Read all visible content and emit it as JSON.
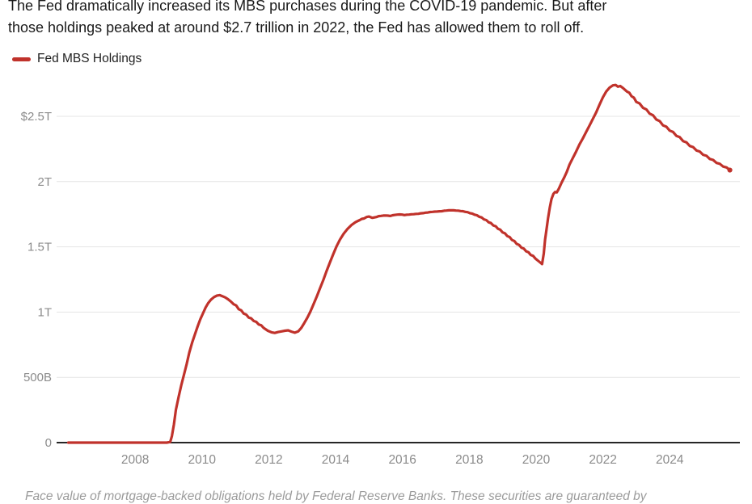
{
  "header": {
    "line1": "The Fed dramatically increased its MBS purchases during the COVID-19 pandemic. But after",
    "line2": "those holdings peaked at around $2.7 trillion in 2022, the Fed has allowed them to roll off."
  },
  "legend": {
    "items": [
      {
        "label": "Fed MBS Holdings",
        "color": "#c0322b"
      }
    ]
  },
  "footer": {
    "note": "Face value of mortgage-backed obligations held by Federal Reserve Banks. These securities are guaranteed by"
  },
  "colors": {
    "line": "#c0322b",
    "grid": "#e4e4e4",
    "axis": "#262626",
    "tick_label": "#8b8b8b",
    "title_text": "#1a1a1a",
    "note_text": "#9b9b9b",
    "background": "#ffffff"
  },
  "chart_data": {
    "type": "line",
    "title": "The Fed dramatically increased its MBS purchases during the COVID-19 pandemic. But after those holdings peaked at around $2.7 trillion in 2022, the Fed has allowed them to roll off.",
    "xlabel": "",
    "ylabel": "",
    "units": "USD, B = billions, T = trillions",
    "grid": "horizontal",
    "legend_position": "top-left",
    "x_domain": [
      2005.77,
      2026.1
    ],
    "y_domain": [
      0,
      2.803
    ],
    "x_ticks": [
      {
        "value": 2008,
        "label": "2008"
      },
      {
        "value": 2010,
        "label": "2010"
      },
      {
        "value": 2012,
        "label": "2012"
      },
      {
        "value": 2014,
        "label": "2014"
      },
      {
        "value": 2016,
        "label": "2016"
      },
      {
        "value": 2018,
        "label": "2018"
      },
      {
        "value": 2020,
        "label": "2020"
      },
      {
        "value": 2022,
        "label": "2022"
      },
      {
        "value": 2024,
        "label": "2024"
      }
    ],
    "y_ticks": [
      {
        "value": 0,
        "label": "0"
      },
      {
        "value": 0.5,
        "label": "500B"
      },
      {
        "value": 1,
        "label": "1T"
      },
      {
        "value": 1.5,
        "label": "1.5T"
      },
      {
        "value": 2,
        "label": "2T"
      },
      {
        "value": 2.5,
        "label": "$2.5T"
      }
    ],
    "series": [
      {
        "name": "Fed MBS Holdings",
        "color": "#c0322b",
        "points": [
          [
            2006.0,
            0
          ],
          [
            2006.5,
            0
          ],
          [
            2007.0,
            0
          ],
          [
            2007.5,
            0
          ],
          [
            2008.0,
            0
          ],
          [
            2008.5,
            0
          ],
          [
            2008.95,
            0
          ],
          [
            2009.05,
            0.005
          ],
          [
            2009.1,
            0.05
          ],
          [
            2009.16,
            0.14
          ],
          [
            2009.22,
            0.25
          ],
          [
            2009.3,
            0.35
          ],
          [
            2009.38,
            0.44
          ],
          [
            2009.46,
            0.52
          ],
          [
            2009.54,
            0.6
          ],
          [
            2009.62,
            0.69
          ],
          [
            2009.71,
            0.77
          ],
          [
            2009.79,
            0.83
          ],
          [
            2009.87,
            0.89
          ],
          [
            2009.95,
            0.945
          ],
          [
            2010.03,
            0.99
          ],
          [
            2010.11,
            1.035
          ],
          [
            2010.19,
            1.07
          ],
          [
            2010.27,
            1.095
          ],
          [
            2010.36,
            1.115
          ],
          [
            2010.45,
            1.127
          ],
          [
            2010.53,
            1.13
          ],
          [
            2010.61,
            1.122
          ],
          [
            2010.7,
            1.112
          ],
          [
            2010.78,
            1.098
          ],
          [
            2010.87,
            1.08
          ],
          [
            2010.95,
            1.06
          ],
          [
            2011.1,
            1.022
          ],
          [
            2011.25,
            0.988
          ],
          [
            2011.4,
            0.958
          ],
          [
            2011.55,
            0.932
          ],
          [
            2011.7,
            0.905
          ],
          [
            2011.85,
            0.878
          ],
          [
            2011.97,
            0.857
          ],
          [
            2012.08,
            0.845
          ],
          [
            2012.18,
            0.84
          ],
          [
            2012.28,
            0.847
          ],
          [
            2012.38,
            0.852
          ],
          [
            2012.48,
            0.857
          ],
          [
            2012.58,
            0.86
          ],
          [
            2012.68,
            0.85
          ],
          [
            2012.78,
            0.842
          ],
          [
            2012.88,
            0.852
          ],
          [
            2012.97,
            0.878
          ],
          [
            2013.06,
            0.915
          ],
          [
            2013.15,
            0.955
          ],
          [
            2013.24,
            1.0
          ],
          [
            2013.33,
            1.055
          ],
          [
            2013.43,
            1.115
          ],
          [
            2013.53,
            1.18
          ],
          [
            2013.63,
            1.245
          ],
          [
            2013.73,
            1.315
          ],
          [
            2013.83,
            1.38
          ],
          [
            2013.93,
            1.445
          ],
          [
            2014.03,
            1.505
          ],
          [
            2014.13,
            1.555
          ],
          [
            2014.24,
            1.6
          ],
          [
            2014.36,
            1.638
          ],
          [
            2014.48,
            1.668
          ],
          [
            2014.6,
            1.69
          ],
          [
            2014.72,
            1.705
          ],
          [
            2014.85,
            1.717
          ],
          [
            2015.0,
            1.732
          ],
          [
            2015.1,
            1.722
          ],
          [
            2015.22,
            1.728
          ],
          [
            2015.36,
            1.737
          ],
          [
            2015.5,
            1.74
          ],
          [
            2015.64,
            1.736
          ],
          [
            2015.78,
            1.744
          ],
          [
            2015.92,
            1.748
          ],
          [
            2016.06,
            1.743
          ],
          [
            2016.2,
            1.747
          ],
          [
            2016.34,
            1.75
          ],
          [
            2016.48,
            1.753
          ],
          [
            2016.62,
            1.758
          ],
          [
            2016.76,
            1.763
          ],
          [
            2016.9,
            1.768
          ],
          [
            2017.04,
            1.77
          ],
          [
            2017.18,
            1.773
          ],
          [
            2017.32,
            1.778
          ],
          [
            2017.46,
            1.78
          ],
          [
            2017.6,
            1.778
          ],
          [
            2017.74,
            1.774
          ],
          [
            2017.88,
            1.768
          ],
          [
            2018.02,
            1.758
          ],
          [
            2018.16,
            1.746
          ],
          [
            2018.3,
            1.73
          ],
          [
            2018.44,
            1.71
          ],
          [
            2018.58,
            1.688
          ],
          [
            2018.72,
            1.664
          ],
          [
            2018.86,
            1.638
          ],
          [
            2019.0,
            1.61
          ],
          [
            2019.14,
            1.582
          ],
          [
            2019.28,
            1.552
          ],
          [
            2019.42,
            1.522
          ],
          [
            2019.56,
            1.494
          ],
          [
            2019.7,
            1.466
          ],
          [
            2019.84,
            1.438
          ],
          [
            2019.98,
            1.41
          ],
          [
            2020.1,
            1.385
          ],
          [
            2020.18,
            1.368
          ],
          [
            2020.23,
            1.45
          ],
          [
            2020.27,
            1.555
          ],
          [
            2020.31,
            1.63
          ],
          [
            2020.36,
            1.72
          ],
          [
            2020.41,
            1.8
          ],
          [
            2020.46,
            1.865
          ],
          [
            2020.52,
            1.905
          ],
          [
            2020.57,
            1.92
          ],
          [
            2020.62,
            1.917
          ],
          [
            2020.68,
            1.945
          ],
          [
            2020.76,
            1.99
          ],
          [
            2020.84,
            2.03
          ],
          [
            2020.92,
            2.075
          ],
          [
            2021.0,
            2.13
          ],
          [
            2021.1,
            2.18
          ],
          [
            2021.2,
            2.23
          ],
          [
            2021.3,
            2.285
          ],
          [
            2021.4,
            2.33
          ],
          [
            2021.5,
            2.38
          ],
          [
            2021.6,
            2.43
          ],
          [
            2021.7,
            2.48
          ],
          [
            2021.8,
            2.53
          ],
          [
            2021.9,
            2.59
          ],
          [
            2022.0,
            2.645
          ],
          [
            2022.1,
            2.69
          ],
          [
            2022.2,
            2.72
          ],
          [
            2022.3,
            2.737
          ],
          [
            2022.38,
            2.74
          ],
          [
            2022.45,
            2.727
          ],
          [
            2022.52,
            2.732
          ],
          [
            2022.6,
            2.717
          ],
          [
            2022.72,
            2.69
          ],
          [
            2022.86,
            2.653
          ],
          [
            2023.0,
            2.61
          ],
          [
            2023.2,
            2.565
          ],
          [
            2023.4,
            2.52
          ],
          [
            2023.6,
            2.475
          ],
          [
            2023.8,
            2.43
          ],
          [
            2024.0,
            2.39
          ],
          [
            2024.2,
            2.35
          ],
          [
            2024.4,
            2.31
          ],
          [
            2024.6,
            2.273
          ],
          [
            2024.8,
            2.238
          ],
          [
            2025.0,
            2.205
          ],
          [
            2025.2,
            2.173
          ],
          [
            2025.4,
            2.143
          ],
          [
            2025.6,
            2.115
          ],
          [
            2025.8,
            2.088
          ]
        ]
      }
    ]
  }
}
